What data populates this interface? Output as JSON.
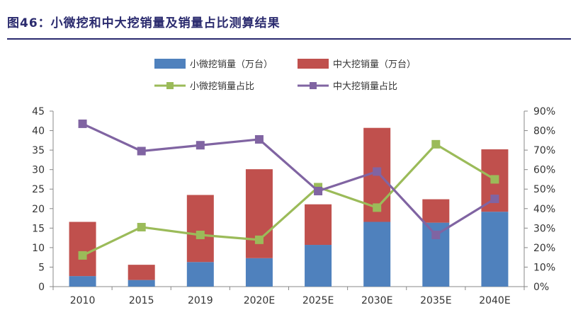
{
  "header": {
    "title": "图46：小微挖和中大挖销量及销量占比测算结果"
  },
  "legend": {
    "items": [
      {
        "label": "小微挖销量（万台）",
        "color": "#4f81bd",
        "kind": "bar"
      },
      {
        "label": "中大挖销量（万台）",
        "color": "#c0504d",
        "kind": "bar"
      },
      {
        "label": "小微挖销量占比",
        "color": "#9bbb59",
        "kind": "line"
      },
      {
        "label": "中大挖销量占比",
        "color": "#8064a2",
        "kind": "line"
      }
    ]
  },
  "chart_data": {
    "type": "bar",
    "categories": [
      "2010",
      "2015",
      "2019",
      "2020E",
      "2025E",
      "2030E",
      "2035E",
      "2040E"
    ],
    "series": [
      {
        "name": "小微挖销量（万台）",
        "type": "stacked-bar",
        "axis": "left",
        "color": "#4f81bd",
        "values": [
          2.7,
          1.7,
          6.3,
          7.3,
          10.7,
          16.6,
          16.4,
          19.2
        ]
      },
      {
        "name": "中大挖销量（万台）",
        "type": "stacked-bar",
        "axis": "left",
        "color": "#c0504d",
        "values": [
          13.9,
          3.9,
          17.2,
          22.8,
          10.4,
          24.1,
          6.0,
          16.0
        ]
      },
      {
        "name": "小微挖销量占比",
        "type": "line",
        "axis": "right",
        "color": "#9bbb59",
        "marker": "square",
        "values": [
          16,
          30.5,
          26.5,
          24,
          51,
          40.5,
          73,
          55
        ]
      },
      {
        "name": "中大挖销量占比",
        "type": "line",
        "axis": "right",
        "color": "#8064a2",
        "marker": "square",
        "values": [
          83.5,
          69.5,
          72.5,
          75.5,
          49,
          59,
          26.5,
          45
        ]
      }
    ],
    "y_left": {
      "min": 0,
      "max": 45,
      "step": 5,
      "ticks": [
        "0",
        "5",
        "10",
        "15",
        "20",
        "25",
        "30",
        "35",
        "40",
        "45"
      ]
    },
    "y_right": {
      "min": 0,
      "max": 90,
      "step": 10,
      "ticks": [
        "0%",
        "10%",
        "20%",
        "30%",
        "40%",
        "50%",
        "60%",
        "70%",
        "80%",
        "90%"
      ]
    },
    "grid": false,
    "legend_position": "top-center"
  }
}
